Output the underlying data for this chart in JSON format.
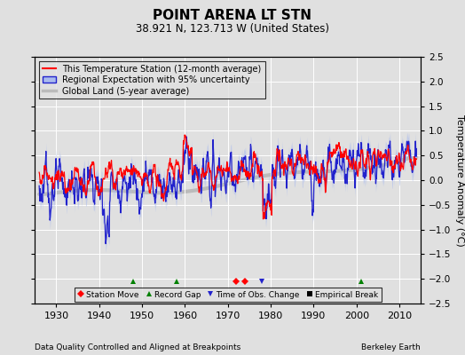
{
  "title": "POINT ARENA LT STN",
  "subtitle": "38.921 N, 123.713 W (United States)",
  "xlabel_left": "Data Quality Controlled and Aligned at Breakpoints",
  "xlabel_right": "Berkeley Earth",
  "ylabel_right": "Temperature Anomaly (°C)",
  "xlim": [
    1925,
    2015
  ],
  "ylim": [
    -2.5,
    2.5
  ],
  "yticks": [
    -2.5,
    -2,
    -1.5,
    -1,
    -0.5,
    0,
    0.5,
    1,
    1.5,
    2,
    2.5
  ],
  "xticks": [
    1930,
    1940,
    1950,
    1960,
    1970,
    1980,
    1990,
    2000,
    2010
  ],
  "bg_color": "#e0e0e0",
  "plot_bg_color": "#e0e0e0",
  "grid_color": "white",
  "station_moves": [
    1972.0,
    1974.0
  ],
  "record_gaps": [
    1948.0,
    1958.0,
    2001.0
  ],
  "time_obs_changes": [
    1978.0
  ],
  "empirical_breaks": []
}
